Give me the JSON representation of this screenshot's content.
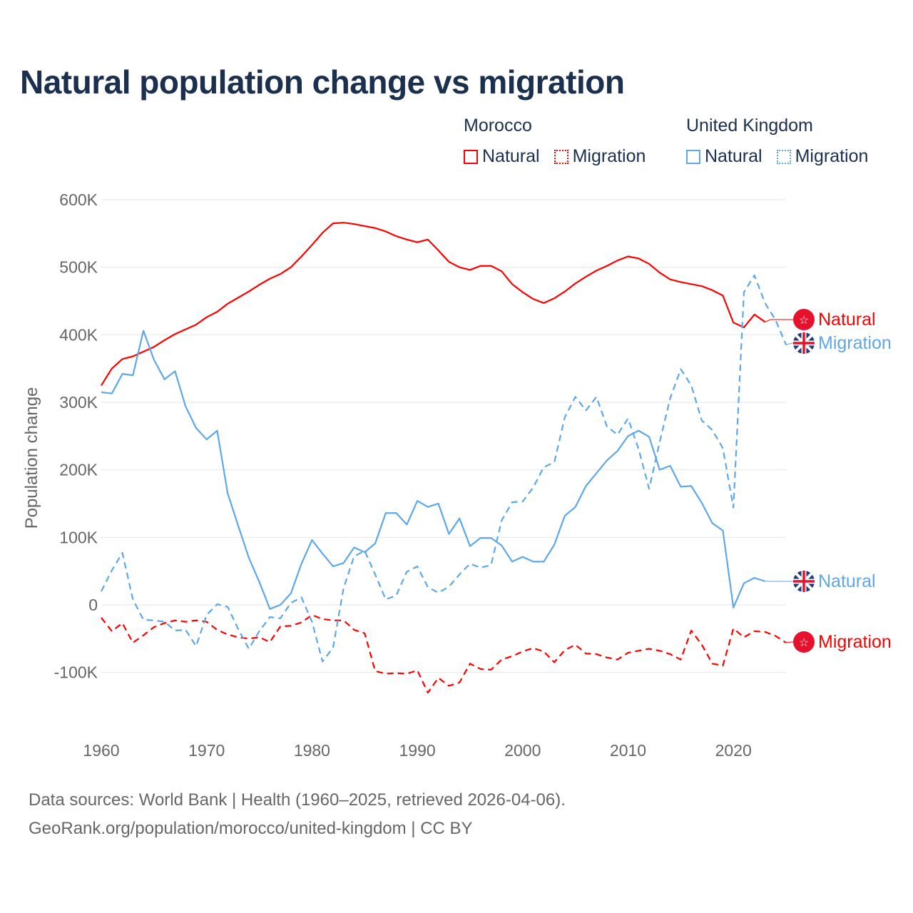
{
  "title": "Natural population change vs migration",
  "legend": {
    "groups": [
      {
        "country": "Morocco",
        "color": "#ff0000",
        "items": [
          "Natural",
          "Migration"
        ]
      },
      {
        "country": "United Kingdom",
        "color": "#5ea7ea",
        "items": [
          "Natural",
          "Migration"
        ]
      }
    ]
  },
  "footer": {
    "line1": "Data sources: World Bank | Health (1960–2025, retrieved 2026-04-06).",
    "line2": "GeoRank.org/population/morocco/united-kingdom | CC BY"
  },
  "chart_data": {
    "type": "line",
    "title": "Natural population change vs migration",
    "ylabel": "Population change",
    "xlabel": "",
    "xlim": [
      1960,
      2025
    ],
    "ylim": [
      -150000,
      620000
    ],
    "x_ticks": [
      1960,
      1970,
      1980,
      1990,
      2000,
      2010,
      2020
    ],
    "y_ticks": [
      {
        "v": -100000,
        "label": "-100K"
      },
      {
        "v": 0,
        "label": "0"
      },
      {
        "v": 100000,
        "label": "100K"
      },
      {
        "v": 200000,
        "label": "200K"
      },
      {
        "v": 300000,
        "label": "300K"
      },
      {
        "v": 400000,
        "label": "400K"
      },
      {
        "v": 500000,
        "label": "500K"
      },
      {
        "v": 600000,
        "label": "600K"
      }
    ],
    "grid": true,
    "series": [
      {
        "name": "Morocco Natural",
        "end_label": "Natural",
        "country": "Morocco",
        "color": "#ff0000",
        "dash": false,
        "start_year": 1960,
        "values_k": [
          325,
          350,
          364,
          368,
          375,
          382,
          392,
          401,
          408,
          415,
          426,
          434,
          446,
          455,
          464,
          474,
          483,
          490,
          500,
          516,
          533,
          551,
          565,
          566,
          564,
          561,
          558,
          553,
          546,
          541,
          537,
          541,
          525,
          508,
          500,
          496,
          502,
          502,
          494,
          475,
          463,
          453,
          447,
          454,
          464,
          476,
          486,
          495,
          502,
          510,
          516,
          513,
          505,
          492,
          482,
          478,
          475,
          472,
          466,
          458,
          418,
          411,
          430,
          419
        ]
      },
      {
        "name": "Morocco Migration",
        "end_label": "Migration",
        "country": "Morocco",
        "color": "#ff0000",
        "dash": true,
        "start_year": 1960,
        "values_k": [
          -19,
          -39,
          -27,
          -56,
          -45,
          -33,
          -27,
          -23,
          -25,
          -23,
          -25,
          -37,
          -44,
          -48,
          -50,
          -48,
          -55,
          -32,
          -31,
          -26,
          -15,
          -21,
          -23,
          -23,
          -37,
          -42,
          -98,
          -102,
          -101,
          -102,
          -97,
          -130,
          -108,
          -120,
          -115,
          -87,
          -95,
          -96,
          -81,
          -76,
          -69,
          -64,
          -69,
          -85,
          -67,
          -59,
          -72,
          -73,
          -78,
          -81,
          -71,
          -68,
          -65,
          -68,
          -73,
          -81,
          -38,
          -59,
          -87,
          -90,
          -35,
          -48,
          -39,
          -40,
          -46,
          -56
        ]
      },
      {
        "name": "United Kingdom Natural",
        "end_label": "Natural",
        "country": "United Kingdom",
        "color": "#5ea7ea",
        "dash": false,
        "start_year": 1960,
        "values_k": [
          315,
          313,
          342,
          340,
          406,
          363,
          334,
          346,
          294,
          262,
          245,
          258,
          165,
          117,
          70,
          34,
          -6,
          0,
          17,
          61,
          96,
          76,
          57,
          62,
          85,
          78,
          91,
          136,
          136,
          119,
          154,
          145,
          150,
          105,
          128,
          87,
          99,
          99,
          88,
          64,
          71,
          64,
          64,
          89,
          132,
          145,
          176,
          195,
          214,
          228,
          250,
          258,
          249,
          200,
          206,
          175,
          176,
          151,
          121,
          110,
          -4,
          32,
          40,
          35
        ]
      },
      {
        "name": "United Kingdom Migration",
        "end_label": "Migration",
        "country": "United Kingdom",
        "color": "#5ea7ea",
        "dash": true,
        "start_year": 1960,
        "values_k": [
          20,
          51,
          77,
          8,
          -22,
          -23,
          -25,
          -38,
          -37,
          -61,
          -15,
          1,
          -3,
          -36,
          -65,
          -39,
          -18,
          -20,
          3,
          11,
          -25,
          -84,
          -63,
          25,
          72,
          80,
          45,
          8,
          14,
          49,
          57,
          26,
          18,
          27,
          45,
          61,
          55,
          59,
          125,
          152,
          153,
          174,
          204,
          211,
          278,
          308,
          288,
          308,
          264,
          252,
          276,
          231,
          172,
          241,
          306,
          349,
          325,
          273,
          259,
          232,
          144,
          463,
          488,
          447,
          422,
          385
        ]
      }
    ]
  }
}
